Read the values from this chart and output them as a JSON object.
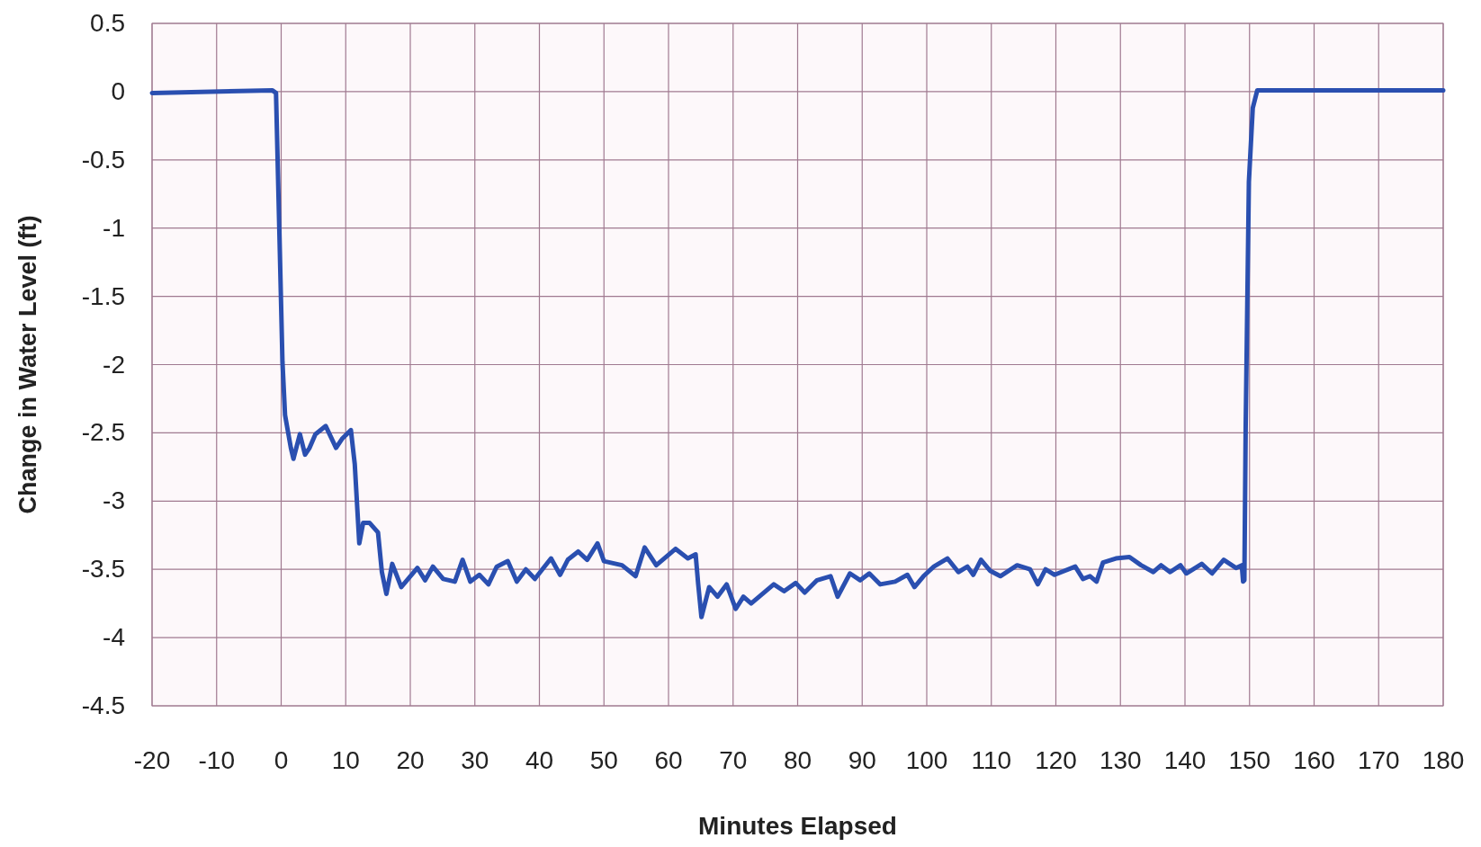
{
  "chart_data": {
    "type": "line",
    "xlabel": "Minutes Elapsed",
    "ylabel": "Change in Water Level (ft)",
    "xlim": [
      -20,
      180
    ],
    "ylim": [
      -4.5,
      0.5
    ],
    "xticks": [
      -20,
      -10,
      0,
      10,
      20,
      30,
      40,
      50,
      60,
      70,
      80,
      90,
      100,
      110,
      120,
      130,
      140,
      150,
      160,
      170,
      180
    ],
    "yticks": [
      0.5,
      0,
      -0.5,
      -1,
      -1.5,
      -2,
      -2.5,
      -3,
      -3.5,
      -4,
      -4.5
    ],
    "grid": true,
    "marker": "none",
    "line_style": "solid",
    "series": [
      {
        "color": "#2a4fb0",
        "x": [
          -20,
          -1.4,
          -0.8,
          -0.3,
          0.2,
          0.6,
          1.5,
          1.9,
          2.9,
          3.7,
          4.4,
          5.3,
          6.9,
          8.5,
          9.5,
          10.8,
          11.4,
          12.1,
          12.7,
          13.7,
          15,
          15.6,
          16.3,
          17.2,
          18.6,
          21.1,
          22.3,
          23.5,
          25.1,
          26.9,
          28.1,
          29.3,
          30.7,
          32.1,
          33.4,
          35.1,
          36.5,
          37.9,
          39.3,
          41.8,
          43.2,
          44.4,
          46,
          47.4,
          49,
          50,
          52.8,
          54.9,
          56.3,
          58.1,
          61.1,
          63,
          64.2,
          64.6,
          65.1,
          66.3,
          67.6,
          69,
          70.4,
          71.6,
          72.8,
          76.3,
          77.9,
          79.7,
          81.1,
          83,
          85.1,
          86.2,
          88.1,
          89.7,
          91.1,
          92.8,
          95.1,
          97,
          98.1,
          99.5,
          101.1,
          103.2,
          104.9,
          106.3,
          107.2,
          108.4,
          109.8,
          111.4,
          114,
          116,
          117.2,
          118.4,
          119.8,
          123,
          124.2,
          125.3,
          126.3,
          127.3,
          129.3,
          131.4,
          133.2,
          135.1,
          136.3,
          137.7,
          139.3,
          140.2,
          142.6,
          144.2,
          146,
          147.9,
          148.8,
          149.0,
          149.2,
          149.4,
          149.9,
          150.5,
          151.2,
          180
        ],
        "values": [
          -0.01,
          0.01,
          -0.01,
          -0.99,
          -1.98,
          -2.37,
          -2.61,
          -2.69,
          -2.51,
          -2.66,
          -2.61,
          -2.51,
          -2.45,
          -2.61,
          -2.54,
          -2.48,
          -2.73,
          -3.31,
          -3.16,
          -3.16,
          -3.23,
          -3.52,
          -3.68,
          -3.46,
          -3.63,
          -3.49,
          -3.58,
          -3.48,
          -3.57,
          -3.59,
          -3.43,
          -3.59,
          -3.54,
          -3.61,
          -3.48,
          -3.44,
          -3.59,
          -3.5,
          -3.57,
          -3.42,
          -3.54,
          -3.43,
          -3.37,
          -3.43,
          -3.31,
          -3.44,
          -3.47,
          -3.55,
          -3.34,
          -3.47,
          -3.35,
          -3.42,
          -3.39,
          -3.61,
          -3.85,
          -3.63,
          -3.7,
          -3.61,
          -3.79,
          -3.7,
          -3.75,
          -3.61,
          -3.66,
          -3.6,
          -3.67,
          -3.58,
          -3.55,
          -3.7,
          -3.53,
          -3.58,
          -3.53,
          -3.61,
          -3.59,
          -3.54,
          -3.63,
          -3.55,
          -3.48,
          -3.42,
          -3.52,
          -3.48,
          -3.54,
          -3.43,
          -3.51,
          -3.55,
          -3.47,
          -3.5,
          -3.61,
          -3.5,
          -3.54,
          -3.48,
          -3.57,
          -3.55,
          -3.59,
          -3.45,
          -3.42,
          -3.41,
          -3.47,
          -3.52,
          -3.47,
          -3.52,
          -3.47,
          -3.53,
          -3.46,
          -3.53,
          -3.43,
          -3.49,
          -3.47,
          -3.59,
          -3.58,
          -2.47,
          -0.66,
          -0.12,
          0.01,
          0.01
        ]
      }
    ]
  }
}
